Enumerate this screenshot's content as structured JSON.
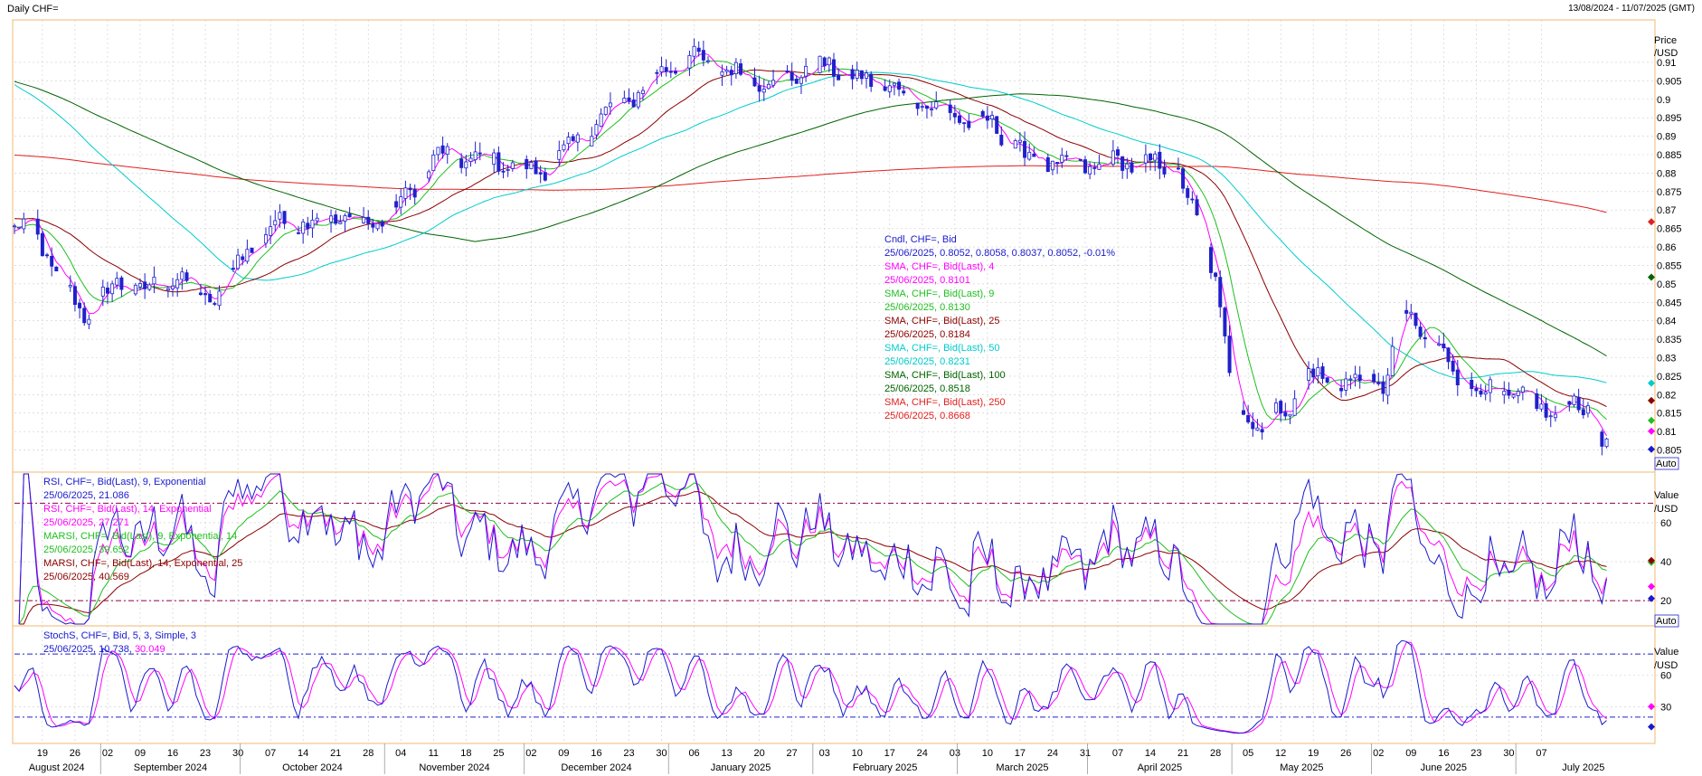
{
  "header": {
    "title": "Daily CHF=",
    "date_range": "13/08/2024 - 11/07/2025 (GMT)"
  },
  "chart_data": {
    "type": "line",
    "x_axis": {
      "day_ticks": [
        "19",
        "26",
        "02",
        "09",
        "16",
        "23",
        "30",
        "07",
        "14",
        "21",
        "28",
        "04",
        "11",
        "18",
        "25",
        "02",
        "09",
        "16",
        "23",
        "30",
        "06",
        "13",
        "20",
        "27",
        "03",
        "10",
        "17",
        "24",
        "03",
        "10",
        "17",
        "24",
        "31",
        "07",
        "14",
        "21",
        "28",
        "05",
        "12",
        "19",
        "26",
        "02",
        "09",
        "16",
        "23",
        "30",
        "07"
      ],
      "months": [
        "August 2024",
        "September 2024",
        "October 2024",
        "November 2024",
        "December 2024",
        "January 2025",
        "February 2025",
        "March 2025",
        "April 2025",
        "May 2025",
        "June 2025",
        "July 2025"
      ]
    },
    "price_panel": {
      "axis_title": [
        "Price",
        "/USD"
      ],
      "ticks": [
        "0.91",
        "0.905",
        "0.9",
        "0.895",
        "0.89",
        "0.885",
        "0.88",
        "0.875",
        "0.87",
        "0.865",
        "0.86",
        "0.855",
        "0.85",
        "0.845",
        "0.84",
        "0.835",
        "0.83",
        "0.825",
        "0.82",
        "0.815",
        "0.81",
        "0.805"
      ],
      "ylim": [
        0.7995,
        0.9215
      ],
      "auto_label": "Auto",
      "close_anchors": [
        [
          0,
          0.865
        ],
        [
          4,
          0.866
        ],
        [
          9,
          0.852
        ],
        [
          15,
          0.842
        ],
        [
          22,
          0.85
        ],
        [
          28,
          0.848
        ],
        [
          35,
          0.852
        ],
        [
          42,
          0.845
        ],
        [
          49,
          0.858
        ],
        [
          56,
          0.866
        ],
        [
          63,
          0.867
        ],
        [
          70,
          0.868
        ],
        [
          77,
          0.866
        ],
        [
          84,
          0.873
        ],
        [
          91,
          0.885
        ],
        [
          98,
          0.884
        ],
        [
          105,
          0.883
        ],
        [
          112,
          0.88
        ],
        [
          119,
          0.886
        ],
        [
          126,
          0.895
        ],
        [
          133,
          0.901
        ],
        [
          140,
          0.909
        ],
        [
          147,
          0.911
        ],
        [
          154,
          0.907
        ],
        [
          161,
          0.905
        ],
        [
          168,
          0.907
        ],
        [
          175,
          0.909
        ],
        [
          182,
          0.905
        ],
        [
          189,
          0.903
        ],
        [
          196,
          0.899
        ],
        [
          203,
          0.895
        ],
        [
          210,
          0.893
        ],
        [
          217,
          0.885
        ],
        [
          224,
          0.882
        ],
        [
          231,
          0.882
        ],
        [
          238,
          0.883
        ],
        [
          245,
          0.882
        ],
        [
          250,
          0.881
        ],
        [
          254,
          0.866
        ],
        [
          258,
          0.852
        ],
        [
          262,
          0.818
        ],
        [
          266,
          0.812
        ],
        [
          270,
          0.814
        ],
        [
          274,
          0.816
        ],
        [
          278,
          0.827
        ],
        [
          282,
          0.822
        ],
        [
          286,
          0.825
        ],
        [
          290,
          0.822
        ],
        [
          294,
          0.823
        ],
        [
          298,
          0.842
        ],
        [
          302,
          0.837
        ],
        [
          306,
          0.832
        ],
        [
          310,
          0.825
        ],
        [
          314,
          0.822
        ],
        [
          318,
          0.82
        ],
        [
          322,
          0.82
        ],
        [
          326,
          0.818
        ],
        [
          330,
          0.815
        ],
        [
          334,
          0.818
        ],
        [
          338,
          0.816
        ],
        [
          340,
          0.811
        ],
        [
          342,
          0.8052
        ]
      ],
      "series_info": [
        {
          "label": "Cndl, CHF=, Bid",
          "value": "25/06/2025, 0.8052, 0.8058, 0.8037, 0.8052, -0.01%",
          "color": "#1a1acc",
          "marker_value": 0.8052
        },
        {
          "label": "SMA, CHF=, Bid(Last), 4",
          "value": "25/06/2025, 0.8101",
          "color": "#ff00ff",
          "period": 4,
          "marker_value": 0.8101
        },
        {
          "label": "SMA, CHF=, Bid(Last), 9",
          "value": "25/06/2025, 0.8130",
          "color": "#1fbf1f",
          "period": 9,
          "marker_value": 0.813
        },
        {
          "label": "SMA, CHF=, Bid(Last), 25",
          "value": "25/06/2025, 0.8184",
          "color": "#8b0000",
          "period": 25,
          "marker_value": 0.8184
        },
        {
          "label": "SMA, CHF=, Bid(Last), 50",
          "value": "25/06/2025, 0.8231",
          "color": "#00cccc",
          "period": 50,
          "marker_value": 0.8231
        },
        {
          "label": "SMA, CHF=, Bid(Last), 100",
          "value": "25/06/2025, 0.8518",
          "color": "#006400",
          "period": 100,
          "marker_value": 0.8518
        },
        {
          "label": "SMA, CHF=, Bid(Last), 250",
          "value": "25/06/2025, 0.8668",
          "color": "#e0201e",
          "period": 250,
          "marker_value": 0.8668
        }
      ]
    },
    "rsi_panel": {
      "axis_title": [
        "Value",
        "/USD"
      ],
      "ticks": [
        "60",
        "40",
        "20"
      ],
      "ylim": [
        8,
        85
      ],
      "overbought": 70,
      "oversold": 20,
      "auto_label": "Auto",
      "series_info": [
        {
          "label": "RSI, CHF=, Bid(Last), 9, Exponential",
          "value": "25/06/2025, 21.086",
          "color": "#1a1acc",
          "marker_value": 21.086
        },
        {
          "label": "RSI, CHF=, Bid(Last), 14, Exponential",
          "value": "25/06/2025, 27.271",
          "color": "#ff00ff",
          "marker_value": 27.271
        },
        {
          "label": "MARSI, CHF=, Bid(Last), 9, Exponential, 14",
          "value": "25/06/2025, 39.652",
          "color": "#1fbf1f",
          "marker_value": 39.652
        },
        {
          "label": "MARSI, CHF=, Bid(Last), 14, Exponential, 25",
          "value": "25/06/2025, 40.569",
          "color": "#8b0000",
          "marker_value": 40.569
        }
      ]
    },
    "stoch_panel": {
      "axis_title": [
        "Value",
        "/USD"
      ],
      "ticks": [
        "60",
        "30"
      ],
      "ylim": [
        -5,
        105
      ],
      "upper": 80,
      "lower": 20,
      "auto_label": "Auto",
      "series_info": [
        {
          "label": "StochS, CHF=, Bid,  5, 3, Simple, 3",
          "value": "25/06/2025, 10.738, 30.049",
          "value_parts": [
            "25/06/2025, 10.738, ",
            "30.049"
          ],
          "colors": [
            "#1a1acc",
            "#ff00ff"
          ],
          "marker_values": [
            10.738,
            30.049
          ]
        }
      ]
    }
  }
}
